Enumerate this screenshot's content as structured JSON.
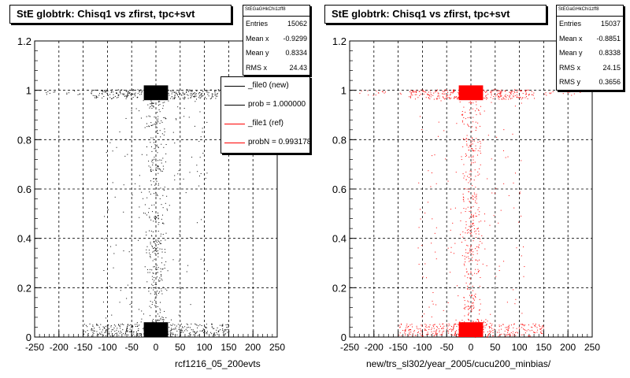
{
  "chart_data": [
    {
      "type": "scatter",
      "title": "StE globtrk: Chisq1 vs zfirst, tpc+svt",
      "xlabel": "rcf1216_05_200evts",
      "ylabel": "",
      "xlim": [
        -250,
        250
      ],
      "ylim": [
        0,
        1.2
      ],
      "x_ticks": [
        "-250",
        "-200",
        "-150",
        "-100",
        "-50",
        "0",
        "50",
        "100",
        "150",
        "200",
        "250"
      ],
      "y_ticks": [
        "0",
        "0.2",
        "0.4",
        "0.6",
        "0.8",
        "1",
        "1.2"
      ],
      "grid": true,
      "marker_color": "#000000",
      "dense_regions": [
        {
          "x": [
            -25,
            25
          ],
          "y": [
            0.96,
            1.02
          ]
        },
        {
          "x": [
            -25,
            25
          ],
          "y": [
            0.0,
            0.06
          ]
        }
      ],
      "stats": {
        "header": "StEGaGHkChi1zff8",
        "rows": [
          {
            "label": "Entries",
            "value": "15062"
          },
          {
            "label": "Mean x",
            "value": "-0.9299"
          },
          {
            "label": "Mean y",
            "value": "0.8334"
          },
          {
            "label": "RMS x",
            "value": "24.43"
          }
        ]
      },
      "legend": {
        "placement": "top-right",
        "entries": [
          {
            "text": "_file0 (new)",
            "color": "#000000"
          },
          {
            "text": "prob = 1.000000",
            "color": "#000000"
          },
          {
            "text": "_file1 (ref)",
            "color": "#ff0000"
          },
          {
            "text": "probN = 0.993178",
            "color": "#ff0000"
          }
        ]
      }
    },
    {
      "type": "scatter",
      "title": "StE globtrk: Chisq1 vs zfirst, tpc+svt",
      "xlabel": "new/trs_sl302/year_2005/cucu200_minbias/",
      "ylabel": "",
      "xlim": [
        -250,
        250
      ],
      "ylim": [
        0,
        1.2
      ],
      "x_ticks": [
        "-250",
        "-200",
        "-150",
        "-100",
        "-50",
        "0",
        "50",
        "100",
        "150",
        "200",
        "250"
      ],
      "y_ticks": [
        "0",
        "0.2",
        "0.4",
        "0.6",
        "0.8",
        "1",
        "1.2"
      ],
      "grid": true,
      "marker_color": "#ff0000",
      "dense_regions": [
        {
          "x": [
            -25,
            25
          ],
          "y": [
            0.96,
            1.02
          ]
        },
        {
          "x": [
            -25,
            25
          ],
          "y": [
            0.0,
            0.06
          ]
        }
      ],
      "stats": {
        "header": "StEGaGHkChi1zff8",
        "rows": [
          {
            "label": "Entries",
            "value": "15037"
          },
          {
            "label": "Mean x",
            "value": "-0.8851"
          },
          {
            "label": "Mean y",
            "value": "0.8338"
          },
          {
            "label": "RMS x",
            "value": "24.15"
          },
          {
            "label": "RMS y",
            "value": "0.3656"
          }
        ]
      }
    }
  ]
}
